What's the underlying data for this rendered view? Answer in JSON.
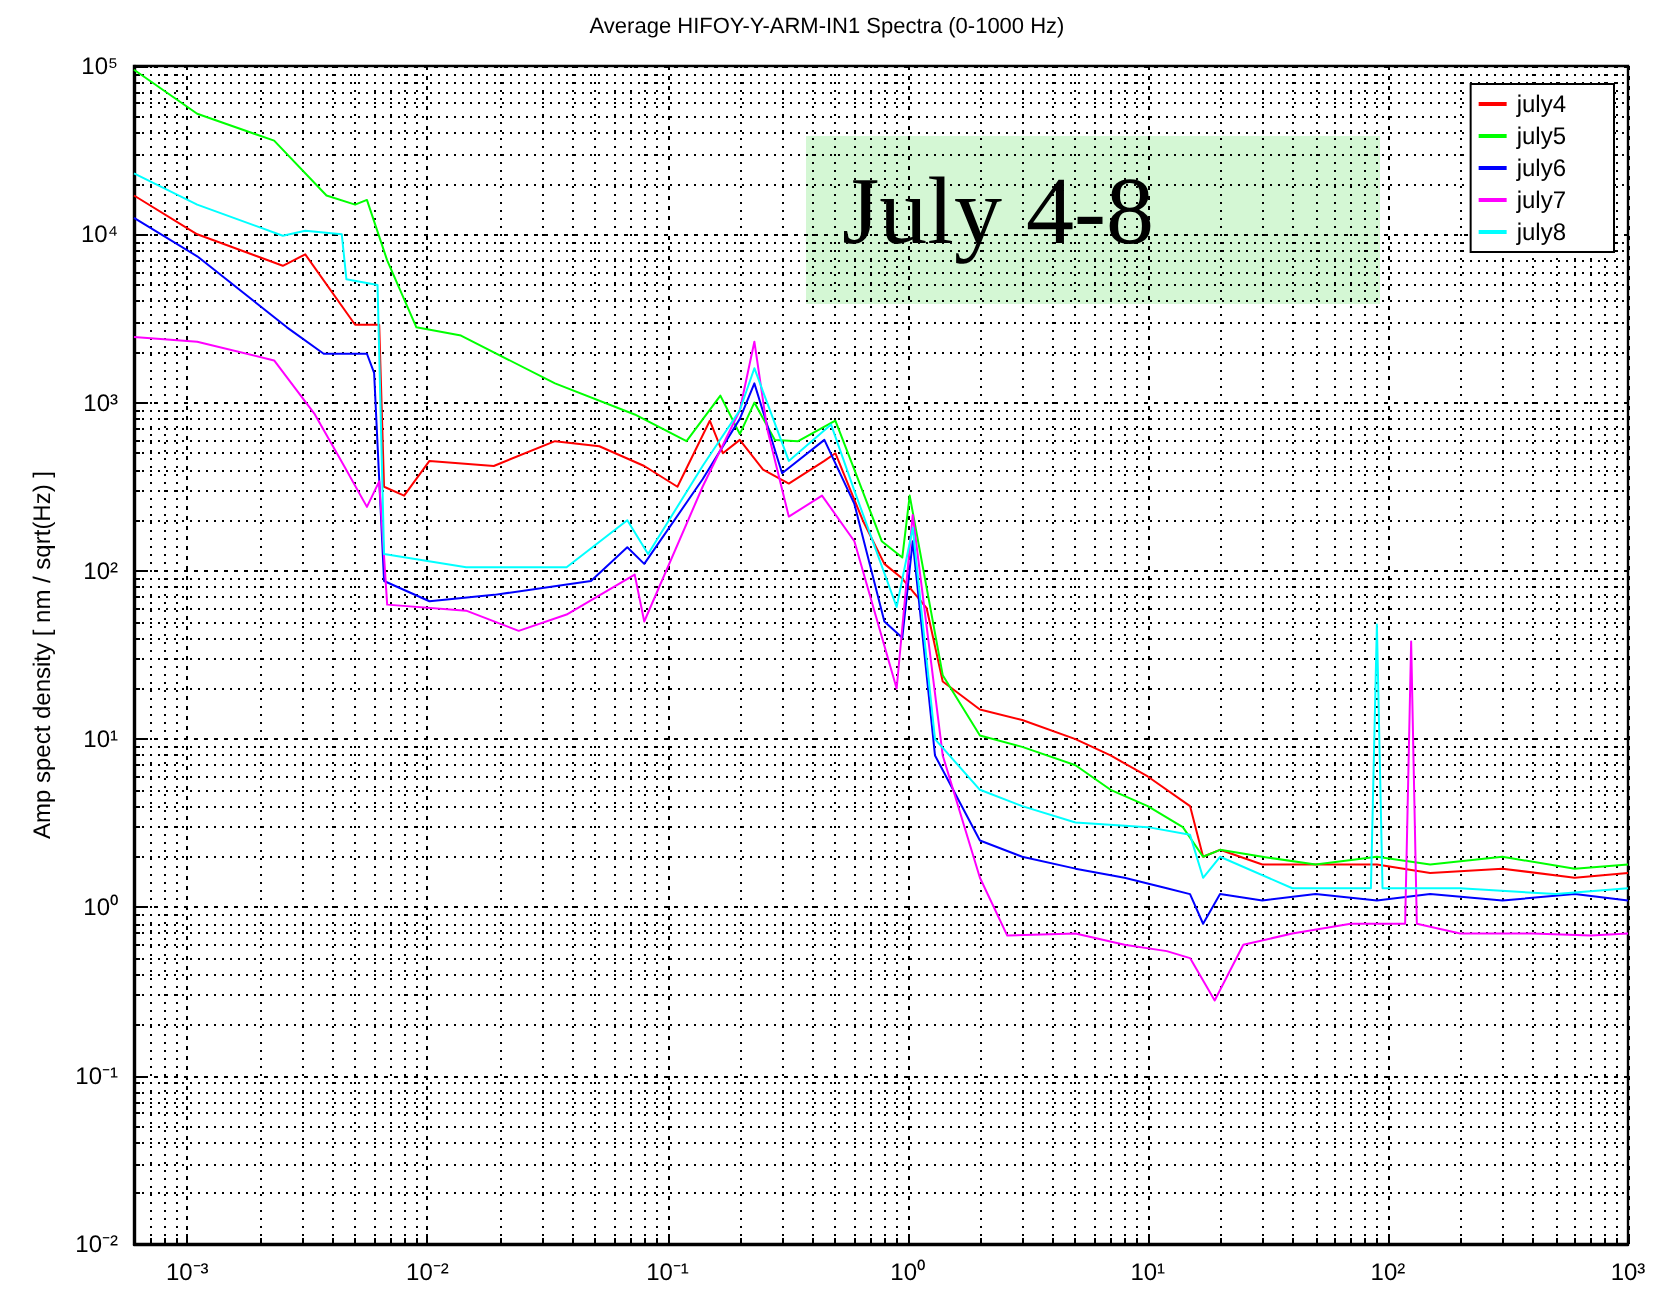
{
  "chart_data": {
    "type": "line",
    "title": "Average HIFOY-Y-ARM-IN1 Spectra (0-1000 Hz)",
    "ylabel": "Amp spect density [ nm / sqrt(Hz) ]",
    "annotations": [
      "July 4-8"
    ],
    "log": "xy",
    "grid": true,
    "legend": "top right",
    "xlim": [
      0.0006,
      1000
    ],
    "ylim": [
      0.01,
      100000
    ],
    "xticks": [
      {
        "value": 0.001,
        "label": "10⁻³"
      },
      {
        "value": 0.01,
        "label": "10⁻²"
      },
      {
        "value": 0.1,
        "label": "10⁻¹"
      },
      {
        "value": 1,
        "label": "10⁰"
      },
      {
        "value": 10,
        "label": "10¹"
      },
      {
        "value": 100,
        "label": "10²"
      },
      {
        "value": 1000,
        "label": "10³"
      }
    ],
    "yticks": [
      {
        "value": 0.01,
        "label": "10⁻²"
      },
      {
        "value": 0.1,
        "label": "10⁻¹"
      },
      {
        "value": 1,
        "label": "10⁰"
      },
      {
        "value": 10,
        "label": "10¹"
      },
      {
        "value": 100,
        "label": "10²"
      },
      {
        "value": 1000,
        "label": "10³"
      },
      {
        "value": 10000,
        "label": "10⁴"
      },
      {
        "value": 100000,
        "label": "10⁵"
      }
    ],
    "series": [
      {
        "name": "july4",
        "color": "#ff0000",
        "x": [
          0.0006,
          0.0011,
          0.0025,
          0.0031,
          0.005,
          0.006,
          0.0063,
          0.0066,
          0.008,
          0.0102,
          0.0189,
          0.034,
          0.052,
          0.08,
          0.11,
          0.15,
          0.17,
          0.2,
          0.25,
          0.32,
          0.45,
          0.5,
          0.65,
          0.8,
          0.95,
          1.2,
          1.4,
          2,
          3,
          5,
          7,
          10,
          15,
          17,
          20,
          30,
          50,
          90,
          150,
          300,
          600,
          1000
        ],
        "values": [
          17000,
          10000,
          6500,
          7600,
          2900,
          2900,
          2900,
          316,
          280,
          450,
          420,
          590,
          550,
          420,
          316,
          780,
          500,
          600,
          400,
          330,
          450,
          500,
          200,
          110,
          90,
          60,
          22,
          15,
          13,
          10,
          8,
          6,
          4,
          2,
          2.2,
          1.8,
          1.8,
          1.8,
          1.6,
          1.7,
          1.5,
          1.6
        ]
      },
      {
        "name": "july5",
        "color": "#00ff00",
        "x": [
          0.0006,
          0.0011,
          0.0023,
          0.0038,
          0.005,
          0.0056,
          0.0068,
          0.009,
          0.0138,
          0.034,
          0.073,
          0.12,
          0.166,
          0.2,
          0.23,
          0.28,
          0.35,
          0.5,
          0.6,
          0.78,
          0.95,
          1.02,
          1.4,
          2,
          3,
          5,
          7,
          10,
          14,
          17,
          20,
          30,
          50,
          90,
          150,
          300,
          600,
          1000
        ],
        "values": [
          95000,
          52000,
          36000,
          17000,
          15000,
          16000,
          7000,
          2800,
          2500,
          1300,
          850,
          590,
          1100,
          650,
          1000,
          600,
          590,
          780,
          400,
          150,
          120,
          280,
          24,
          10.5,
          9,
          7,
          5,
          4,
          3,
          2,
          2.2,
          2,
          1.8,
          2,
          1.8,
          2,
          1.7,
          1.8
        ]
      },
      {
        "name": "july6",
        "color": "#0000ff",
        "x": [
          0.0006,
          0.0011,
          0.0026,
          0.0037,
          0.0056,
          0.006,
          0.0066,
          0.0102,
          0.019,
          0.048,
          0.068,
          0.08,
          0.14,
          0.2,
          0.23,
          0.3,
          0.45,
          0.6,
          0.8,
          0.95,
          1.05,
          1.3,
          2,
          3,
          5,
          8,
          12,
          15,
          17,
          20,
          30,
          50,
          90,
          150,
          300,
          600,
          1000
        ],
        "values": [
          12500,
          7400,
          2800,
          1950,
          1950,
          1500,
          87,
          66,
          72,
          87,
          138,
          110,
          350,
          800,
          1300,
          380,
          600,
          250,
          50,
          40,
          150,
          8,
          2.5,
          2,
          1.7,
          1.5,
          1.3,
          1.2,
          0.8,
          1.2,
          1.1,
          1.2,
          1.1,
          1.2,
          1.1,
          1.2,
          1.1
        ]
      },
      {
        "name": "july7",
        "color": "#ff00ff",
        "x": [
          0.0006,
          0.0011,
          0.0023,
          0.0034,
          0.0045,
          0.0056,
          0.0063,
          0.0068,
          0.0145,
          0.024,
          0.038,
          0.073,
          0.08,
          0.14,
          0.2,
          0.23,
          0.26,
          0.32,
          0.44,
          0.6,
          0.9,
          1.05,
          1.4,
          2,
          2.6,
          5,
          8,
          12,
          15,
          19,
          25,
          40,
          70,
          118,
          125,
          132,
          200,
          400,
          700,
          1000
        ],
        "values": [
          2450,
          2300,
          1780,
          850,
          420,
          240,
          340,
          63,
          58,
          44,
          55,
          95,
          50,
          316,
          900,
          2300,
          700,
          210,
          280,
          150,
          20,
          215,
          8,
          1.5,
          0.68,
          0.7,
          0.6,
          0.55,
          0.5,
          0.28,
          0.6,
          0.7,
          0.8,
          0.8,
          38,
          0.8,
          0.7,
          0.7,
          0.68,
          0.7
        ]
      },
      {
        "name": "july8",
        "color": "#00ffff",
        "x": [
          0.0006,
          0.0011,
          0.0025,
          0.0031,
          0.0044,
          0.0046,
          0.0062,
          0.0066,
          0.0145,
          0.038,
          0.068,
          0.083,
          0.14,
          0.2,
          0.23,
          0.32,
          0.48,
          0.6,
          0.9,
          1.05,
          1.3,
          2,
          3,
          5,
          10,
          15,
          17,
          20,
          40,
          85,
          90,
          95,
          200,
          500,
          1000
        ],
        "values": [
          23000,
          15000,
          9800,
          10500,
          10000,
          5400,
          5000,
          126,
          105,
          105,
          200,
          126,
          420,
          900,
          1600,
          450,
          740,
          300,
          61,
          180,
          10,
          5,
          4,
          3.2,
          3,
          2.7,
          1.5,
          2,
          1.3,
          1.3,
          48,
          1.3,
          1.3,
          1.2,
          1.3
        ]
      }
    ]
  }
}
